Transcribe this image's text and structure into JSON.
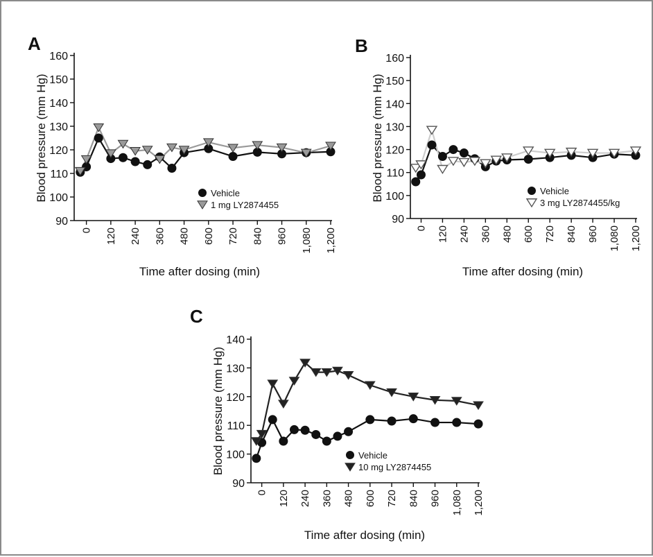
{
  "chart_data": [
    {
      "type": "line",
      "panel_label": "A",
      "ylabel": "Blood pressure (mm Hg)",
      "xlabel": "Time after dosing (min)",
      "ylim": [
        90,
        160
      ],
      "yticks": [
        90,
        100,
        110,
        120,
        130,
        140,
        150,
        160
      ],
      "xlim": [
        -60,
        1200
      ],
      "xticks": [
        0,
        120,
        240,
        360,
        480,
        600,
        720,
        840,
        960,
        1080,
        1200
      ],
      "xtick_labels": [
        "0",
        "120",
        "240",
        "360",
        "480",
        "600",
        "720",
        "840",
        "960",
        "1,080",
        "1,200"
      ],
      "legend_position": "bottom-right",
      "grid": false,
      "series": [
        {
          "name": "Vehicle",
          "marker": "circle",
          "color": "#111111",
          "line_color": "#111111",
          "x": [
            -30,
            0,
            60,
            120,
            180,
            240,
            300,
            360,
            420,
            480,
            600,
            720,
            840,
            960,
            1080,
            1200
          ],
          "values": [
            110.5,
            112.8,
            125.0,
            116.3,
            116.7,
            115.0,
            113.7,
            117.0,
            112.2,
            118.8,
            120.5,
            117.2,
            119.0,
            118.3,
            118.8,
            119.2
          ]
        },
        {
          "name": "1 mg LY2874455",
          "marker": "triangle-down",
          "color": "#9a9a9a",
          "line_color": "#9a9a9a",
          "x": [
            -30,
            0,
            60,
            120,
            180,
            240,
            300,
            360,
            420,
            480,
            600,
            720,
            840,
            960,
            1080,
            1200
          ],
          "values": [
            111.0,
            116.0,
            129.5,
            118.5,
            122.5,
            119.5,
            120.0,
            116.0,
            121.0,
            120.0,
            123.2,
            120.8,
            122.0,
            121.0,
            118.7,
            121.7
          ]
        }
      ]
    },
    {
      "type": "line",
      "panel_label": "B",
      "ylabel": "Blood pressure (mm Hg)",
      "xlabel": "Time after dosing (min)",
      "ylim": [
        90,
        160
      ],
      "yticks": [
        90,
        100,
        110,
        120,
        130,
        140,
        150,
        160
      ],
      "xlim": [
        -60,
        1200
      ],
      "xticks": [
        0,
        120,
        240,
        360,
        480,
        600,
        720,
        840,
        960,
        1080,
        1200
      ],
      "xtick_labels": [
        "0",
        "120",
        "240",
        "360",
        "480",
        "600",
        "720",
        "840",
        "960",
        "1,080",
        "1,200"
      ],
      "legend_position": "bottom-right",
      "grid": false,
      "series": [
        {
          "name": "Vehicle",
          "marker": "circle",
          "color": "#111111",
          "line_color": "#111111",
          "x": [
            -30,
            0,
            60,
            120,
            180,
            240,
            300,
            360,
            420,
            480,
            600,
            720,
            840,
            960,
            1080,
            1200
          ],
          "values": [
            106.0,
            109.0,
            122.0,
            117.0,
            120.0,
            118.5,
            116.0,
            112.5,
            115.0,
            115.5,
            115.8,
            116.5,
            117.5,
            116.5,
            118.0,
            117.5
          ]
        },
        {
          "name": "3 mg LY2874455/kg",
          "marker": "triangle-down-open",
          "color": "#555555",
          "line_color": "#cccccc",
          "x": [
            -30,
            0,
            60,
            120,
            180,
            240,
            300,
            360,
            420,
            480,
            600,
            720,
            840,
            960,
            1080,
            1200
          ],
          "values": [
            112.0,
            113.5,
            128.5,
            111.5,
            115.0,
            114.5,
            115.0,
            114.0,
            115.5,
            116.5,
            119.5,
            118.5,
            119.0,
            118.5,
            118.5,
            119.5
          ]
        }
      ]
    },
    {
      "type": "line",
      "panel_label": "C",
      "ylabel": "Blood pressure (mm Hg)",
      "xlabel": "Time after dosing (min)",
      "ylim": [
        90,
        140
      ],
      "yticks": [
        90,
        100,
        110,
        120,
        130,
        140
      ],
      "xlim": [
        -60,
        1200
      ],
      "xticks": [
        0,
        120,
        240,
        360,
        480,
        600,
        720,
        840,
        960,
        1080,
        1200
      ],
      "xtick_labels": [
        "0",
        "120",
        "240",
        "360",
        "480",
        "600",
        "720",
        "840",
        "960",
        "1,080",
        "1,200"
      ],
      "legend_position": "bottom-right",
      "grid": false,
      "series": [
        {
          "name": "Vehicle",
          "marker": "circle",
          "color": "#111111",
          "line_color": "#111111",
          "x": [
            -30,
            0,
            60,
            120,
            180,
            240,
            300,
            360,
            420,
            480,
            600,
            720,
            840,
            960,
            1080,
            1200
          ],
          "values": [
            98.5,
            104.0,
            112.0,
            104.5,
            108.5,
            108.3,
            106.8,
            104.5,
            106.2,
            107.8,
            112.0,
            111.5,
            112.3,
            111.0,
            111.0,
            110.5
          ]
        },
        {
          "name": "10 mg LY2874455",
          "marker": "triangle-down",
          "color": "#222222",
          "line_color": "#222222",
          "x": [
            -30,
            0,
            60,
            120,
            180,
            240,
            300,
            360,
            420,
            480,
            600,
            720,
            840,
            960,
            1080,
            1200
          ],
          "values": [
            104.5,
            107.0,
            124.5,
            117.5,
            125.5,
            131.8,
            128.5,
            128.5,
            129.0,
            127.5,
            124.0,
            121.5,
            120.0,
            118.8,
            118.5,
            117.0
          ]
        }
      ]
    }
  ]
}
